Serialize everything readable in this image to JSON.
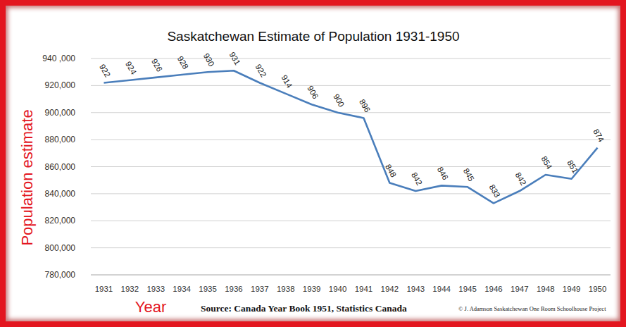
{
  "chart_data": {
    "type": "line",
    "title": "Saskatchewan Estimate of Population 1931-1950",
    "x_label": "Year",
    "y_label": "Population estimate",
    "annotations": [
      "Source: Canada Year Book 1951, Statistics Canada",
      "© J. Adamson Saskatchewan One Room Schoolhouse Project"
    ],
    "categories": [
      "1931",
      "1932",
      "1933",
      "1934",
      "1935",
      "1936",
      "1937",
      "1938",
      "1939",
      "1940",
      "1941",
      "1942",
      "1943",
      "1944",
      "1945",
      "1946",
      "1947",
      "1948",
      "1949",
      "1950"
    ],
    "values": [
      922000,
      924000,
      926000,
      928000,
      930000,
      931000,
      922000,
      914000,
      906000,
      900000,
      896000,
      848000,
      842000,
      846000,
      845000,
      833000,
      842000,
      854000,
      851000,
      874000
    ],
    "value_labels": [
      "922",
      "924",
      "926",
      "928",
      "930",
      "931",
      "922",
      "914",
      "906",
      "900",
      "896",
      "848",
      "842",
      "846",
      "845",
      "833",
      "842",
      "854",
      "851",
      "874"
    ],
    "color": "#4a7ebb",
    "ylim": [
      780000,
      940000
    ],
    "yticks": [
      {
        "value": 780000,
        "label": "780,000"
      },
      {
        "value": 800000,
        "label": "800,000"
      },
      {
        "value": 820000,
        "label": "820,000"
      },
      {
        "value": 840000,
        "label": "840,000"
      },
      {
        "value": 860000,
        "label": "860,000"
      },
      {
        "value": 880000,
        "label": "880,000"
      },
      {
        "value": 900000,
        "label": "900,000"
      },
      {
        "value": 920000,
        "label": "920,000"
      },
      {
        "value": 940000,
        "label": "940 ,000"
      }
    ],
    "grid": true,
    "data_labels": true
  }
}
